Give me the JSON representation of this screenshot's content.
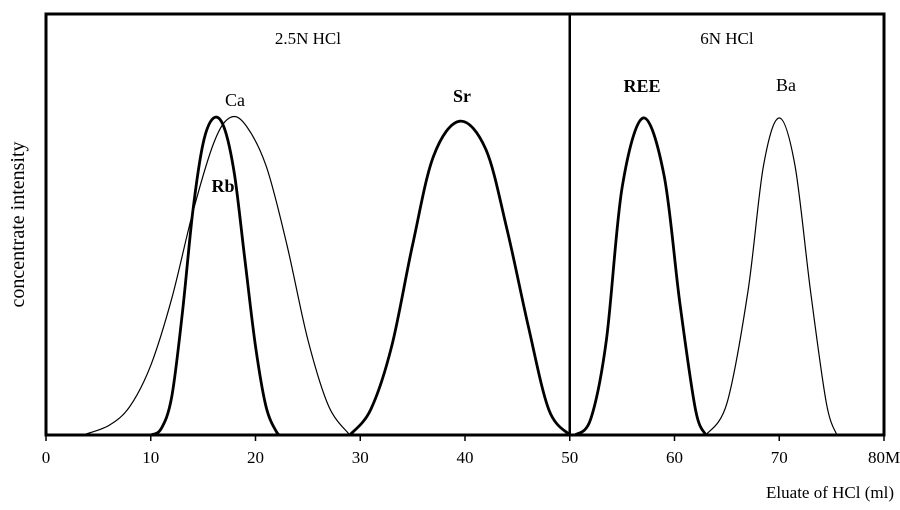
{
  "chart_data": {
    "type": "line",
    "title": "",
    "xlabel": "Eluate of HCl (ml)",
    "ylabel": "concentrate intensity",
    "xlim": [
      0,
      80
    ],
    "ylim": [
      0,
      1.0
    ],
    "xticks": [
      0,
      10,
      20,
      30,
      40,
      50,
      60,
      70,
      80
    ],
    "grid": false,
    "regions": [
      {
        "label": "2.5N HCl",
        "x_range": [
          0,
          50
        ]
      },
      {
        "label": "6N HCl",
        "x_range": [
          50,
          80
        ]
      }
    ],
    "divider_x": 50,
    "series": [
      {
        "name": "Ca",
        "bold": false,
        "x": [
          3.5,
          6,
          8,
          10,
          12,
          14,
          16,
          17.5,
          19,
          21,
          23,
          25,
          27,
          29
        ],
        "y": [
          0.0,
          0.03,
          0.09,
          0.22,
          0.43,
          0.7,
          0.92,
          1.0,
          0.98,
          0.85,
          0.6,
          0.3,
          0.09,
          0.0
        ]
      },
      {
        "name": "Rb",
        "bold": true,
        "x": [
          10,
          11,
          12,
          13,
          14,
          15,
          16,
          17,
          18,
          19,
          20,
          21,
          22,
          22.5
        ],
        "y": [
          0.0,
          0.02,
          0.12,
          0.38,
          0.7,
          0.92,
          1.0,
          0.97,
          0.82,
          0.55,
          0.28,
          0.09,
          0.01,
          0.0
        ]
      },
      {
        "name": "Sr",
        "bold": true,
        "x": [
          29,
          31,
          33,
          35,
          37,
          39.5,
          42,
          44,
          46,
          48,
          50
        ],
        "y": [
          0.0,
          0.08,
          0.28,
          0.6,
          0.88,
          0.99,
          0.9,
          0.65,
          0.35,
          0.08,
          0.0
        ]
      },
      {
        "name": "REE",
        "bold": true,
        "x": [
          50.5,
          52,
          53.5,
          55,
          57,
          59,
          60.5,
          62,
          63
        ],
        "y": [
          0.0,
          0.05,
          0.3,
          0.78,
          1.0,
          0.82,
          0.42,
          0.08,
          0.0
        ]
      },
      {
        "name": "Ba",
        "bold": false,
        "x": [
          63,
          65,
          67,
          68.5,
          70,
          71.5,
          73,
          74.5,
          75.5
        ],
        "y": [
          0.0,
          0.1,
          0.45,
          0.85,
          1.0,
          0.85,
          0.45,
          0.1,
          0.0
        ]
      }
    ]
  }
}
